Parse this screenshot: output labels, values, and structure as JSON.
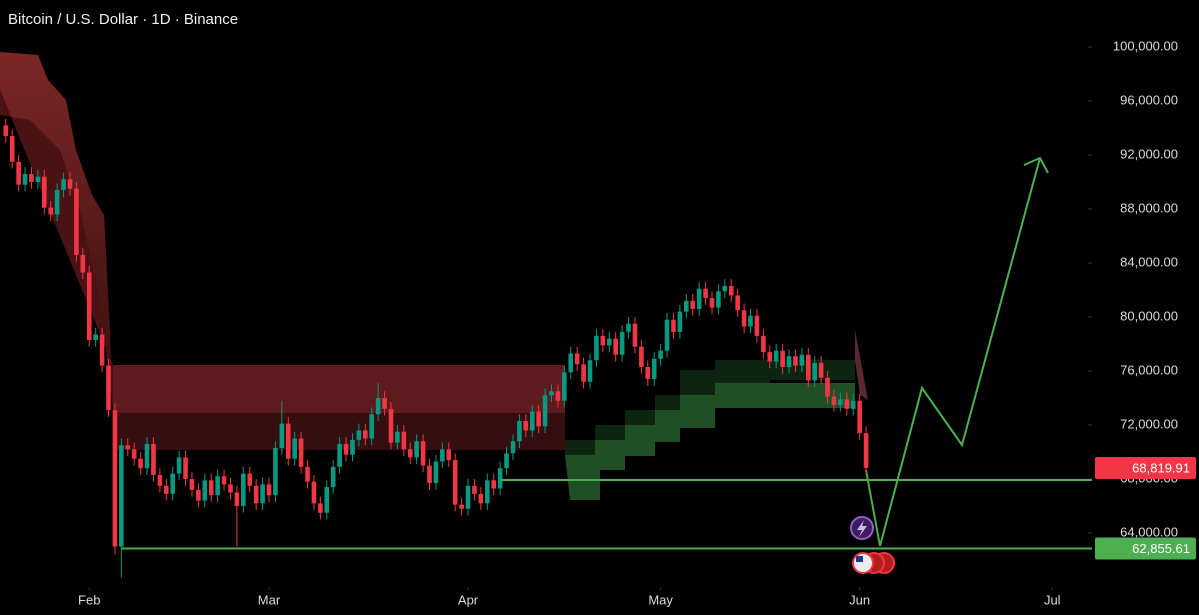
{
  "chart_data": {
    "type": "candlestick",
    "title": "Bitcoin / U.S. Dollar · 1D · Binance",
    "up_color": "#089981",
    "down_color": "#f23645",
    "x": [
      -13,
      -12,
      -11,
      -10,
      -9,
      -8,
      -7,
      -6,
      -5,
      -4,
      -3,
      -2,
      -1,
      0,
      1,
      2,
      3,
      4,
      5,
      6,
      7,
      8,
      9,
      10,
      11,
      12,
      13,
      14,
      15,
      16,
      17,
      18,
      19,
      20,
      21,
      22,
      23,
      24,
      25,
      26,
      27,
      28,
      29,
      30,
      31,
      32,
      33,
      34,
      35,
      36,
      37,
      38,
      39,
      40,
      41,
      42,
      43,
      44,
      45,
      46,
      47,
      48,
      49,
      50,
      51,
      52,
      53,
      54,
      55,
      56,
      57,
      58,
      59,
      60,
      61,
      62,
      63,
      64,
      65,
      66,
      67,
      68,
      69,
      70,
      71,
      72,
      73,
      74,
      75,
      76,
      77,
      78,
      79,
      80,
      81,
      82,
      83,
      84,
      85,
      86,
      87,
      88,
      89,
      90,
      91,
      92,
      93,
      94,
      95,
      96,
      97,
      98,
      99,
      100,
      101,
      102,
      103,
      104,
      105,
      106,
      107,
      108,
      109,
      110,
      111,
      112,
      113,
      114,
      115,
      116,
      117,
      118,
      119,
      120,
      121
    ],
    "open": [
      94200,
      93400,
      91500,
      89800,
      90600,
      90000,
      90400,
      88100,
      87600,
      89400,
      90200,
      89500,
      84600,
      83300,
      78300,
      78700,
      76400,
      73100,
      63000,
      70500,
      70200,
      69500,
      68800,
      70600,
      68300,
      67500,
      66900,
      68400,
      69600,
      68000,
      67200,
      66400,
      67900,
      66800,
      68200,
      67600,
      67000,
      66000,
      68400,
      67500,
      66200,
      67600,
      66800,
      70300,
      72100,
      69500,
      71000,
      68900,
      67800,
      66200,
      65500,
      67400,
      68900,
      70600,
      69800,
      70900,
      71600,
      71000,
      72800,
      74000,
      73200,
      70700,
      71500,
      70200,
      69600,
      70800,
      69000,
      67700,
      69300,
      70200,
      69400,
      66100,
      65800,
      67500,
      66900,
      66200,
      67900,
      67300,
      68800,
      69900,
      70800,
      72300,
      71600,
      73000,
      71900,
      74200,
      74500,
      73800,
      75900,
      77300,
      76500,
      75200,
      76800,
      78600,
      77900,
      78400,
      77200,
      78900,
      79500,
      77800,
      76300,
      75400,
      76900,
      77500,
      79800,
      78900,
      80400,
      81200,
      80600,
      82100,
      81400,
      80700,
      81900,
      82300,
      81600,
      80500,
      79300,
      80100,
      78600,
      77400,
      76700,
      77500,
      76300,
      77100,
      76400,
      77200,
      75300,
      76600,
      75500,
      74100,
      73500,
      73900,
      73200,
      73800,
      71400
    ],
    "high": [
      94700,
      93900,
      92000,
      91100,
      91100,
      90900,
      90900,
      88600,
      89900,
      90700,
      90700,
      90000,
      85100,
      83800,
      79200,
      79200,
      76900,
      73600,
      71000,
      71000,
      70700,
      70000,
      71100,
      71100,
      68800,
      68000,
      68900,
      70100,
      70100,
      68500,
      67700,
      68400,
      68400,
      68700,
      68700,
      68100,
      67500,
      68900,
      68900,
      68000,
      68100,
      68100,
      70800,
      73800,
      72600,
      71500,
      71500,
      69400,
      68300,
      66700,
      67900,
      69400,
      71100,
      71100,
      71400,
      72100,
      72100,
      73300,
      75100,
      74500,
      73700,
      72000,
      72000,
      70700,
      71300,
      71300,
      69500,
      69800,
      70700,
      70700,
      69900,
      66600,
      68000,
      68000,
      67400,
      68400,
      68400,
      69300,
      70400,
      71300,
      72800,
      72800,
      73500,
      73500,
      74700,
      75000,
      75000,
      76400,
      77800,
      77800,
      77000,
      77300,
      79100,
      79100,
      78900,
      78900,
      79400,
      80000,
      80000,
      78300,
      76800,
      77400,
      78000,
      80300,
      80300,
      80900,
      81700,
      81700,
      82600,
      82600,
      81900,
      82400,
      82800,
      82800,
      82100,
      81000,
      80600,
      80600,
      79100,
      77900,
      78000,
      78000,
      77600,
      77600,
      77700,
      77700,
      77100,
      77100,
      76000,
      74600,
      74400,
      74400,
      74300,
      74300,
      71900
    ],
    "low": [
      92900,
      91000,
      89300,
      89300,
      89500,
      89500,
      87600,
      87100,
      87100,
      88900,
      89000,
      84100,
      82800,
      77800,
      77800,
      75900,
      72600,
      62400,
      60700,
      69700,
      69000,
      68300,
      68300,
      67800,
      67000,
      66400,
      66400,
      67900,
      67500,
      66700,
      65900,
      65900,
      66300,
      66300,
      67100,
      66500,
      63000,
      65500,
      67000,
      65700,
      65700,
      66300,
      66300,
      69800,
      69000,
      69000,
      68400,
      67300,
      65700,
      65000,
      65000,
      66900,
      68400,
      69300,
      69300,
      70400,
      70500,
      70500,
      72300,
      72700,
      70200,
      70200,
      69700,
      69100,
      69100,
      68500,
      67200,
      67200,
      68800,
      68900,
      65600,
      65300,
      65300,
      66400,
      65700,
      65700,
      66800,
      66800,
      68300,
      69400,
      70300,
      71100,
      71100,
      71400,
      71400,
      73700,
      73300,
      73300,
      75400,
      76000,
      74700,
      74700,
      76300,
      77400,
      77400,
      76700,
      76700,
      78400,
      77300,
      75800,
      74900,
      74900,
      76400,
      77000,
      78400,
      78400,
      79900,
      80100,
      80100,
      80900,
      80200,
      80200,
      81400,
      81100,
      80000,
      78800,
      78800,
      78100,
      76900,
      76200,
      76200,
      75800,
      75800,
      75900,
      75900,
      74800,
      74800,
      75000,
      73600,
      73000,
      73000,
      72700,
      72700,
      70900,
      68300
    ],
    "close": [
      93400,
      91500,
      89800,
      90600,
      90000,
      90400,
      88100,
      87600,
      89400,
      90200,
      89500,
      84600,
      83300,
      78300,
      78700,
      76400,
      73100,
      63000,
      70500,
      70200,
      69500,
      68800,
      70600,
      68300,
      67500,
      66900,
      68400,
      69600,
      68000,
      67200,
      66400,
      67900,
      66800,
      68200,
      67600,
      67000,
      66000,
      68400,
      67500,
      66200,
      67600,
      66800,
      70300,
      72100,
      69500,
      71000,
      68900,
      67800,
      66200,
      65500,
      67400,
      68900,
      70600,
      69800,
      70900,
      71600,
      71000,
      72800,
      74000,
      73200,
      70700,
      71500,
      70200,
      69600,
      70800,
      69000,
      67700,
      69300,
      70200,
      69400,
      66100,
      65800,
      67500,
      66900,
      66200,
      67900,
      67300,
      68800,
      69900,
      70800,
      72300,
      71600,
      73000,
      71900,
      74200,
      74500,
      73800,
      75900,
      77300,
      76500,
      75200,
      76800,
      78600,
      77900,
      78400,
      77200,
      78900,
      79500,
      77800,
      76300,
      75400,
      76900,
      77500,
      79800,
      78900,
      80400,
      81200,
      80600,
      82100,
      81400,
      80700,
      81900,
      82300,
      81600,
      80500,
      79300,
      80100,
      78600,
      77400,
      76700,
      77500,
      76300,
      77100,
      76400,
      77200,
      75300,
      76600,
      75500,
      74100,
      73500,
      73900,
      73200,
      73800,
      71400,
      68819.91
    ],
    "xlim": [
      -13.9,
      155.1
    ],
    "xticks": [
      {
        "value": 0,
        "label": "Feb"
      },
      {
        "value": 28,
        "label": "Mar"
      },
      {
        "value": 59,
        "label": "Apr"
      },
      {
        "value": 89,
        "label": "May"
      },
      {
        "value": 120,
        "label": "Jun"
      },
      {
        "value": 150,
        "label": "Jul"
      }
    ],
    "ylim": [
      60150,
      103480
    ],
    "yticks": [
      {
        "value": 64000,
        "label": "64,000.00"
      },
      {
        "value": 68000,
        "label": "68,000.00"
      },
      {
        "value": 72000,
        "label": "72,000.00"
      },
      {
        "value": 76000,
        "label": "76,000.00"
      },
      {
        "value": 80000,
        "label": "80,000.00"
      },
      {
        "value": 84000,
        "label": "84,000.00"
      },
      {
        "value": 88000,
        "label": "88,000.00"
      },
      {
        "value": 92000,
        "label": "92,000.00"
      },
      {
        "value": 96000,
        "label": "96,000.00"
      },
      {
        "value": 100000,
        "label": "100,000.00"
      }
    ],
    "levels": [
      {
        "value": 62855.61,
        "label": "62,855.61",
        "from": 5,
        "color": "#4caf50"
      },
      {
        "value": 67930,
        "from": 64,
        "color": "#4caf50"
      }
    ],
    "last_price": {
      "value": 68819.91,
      "label": "68,819.91",
      "color": "#f23645"
    }
  }
}
